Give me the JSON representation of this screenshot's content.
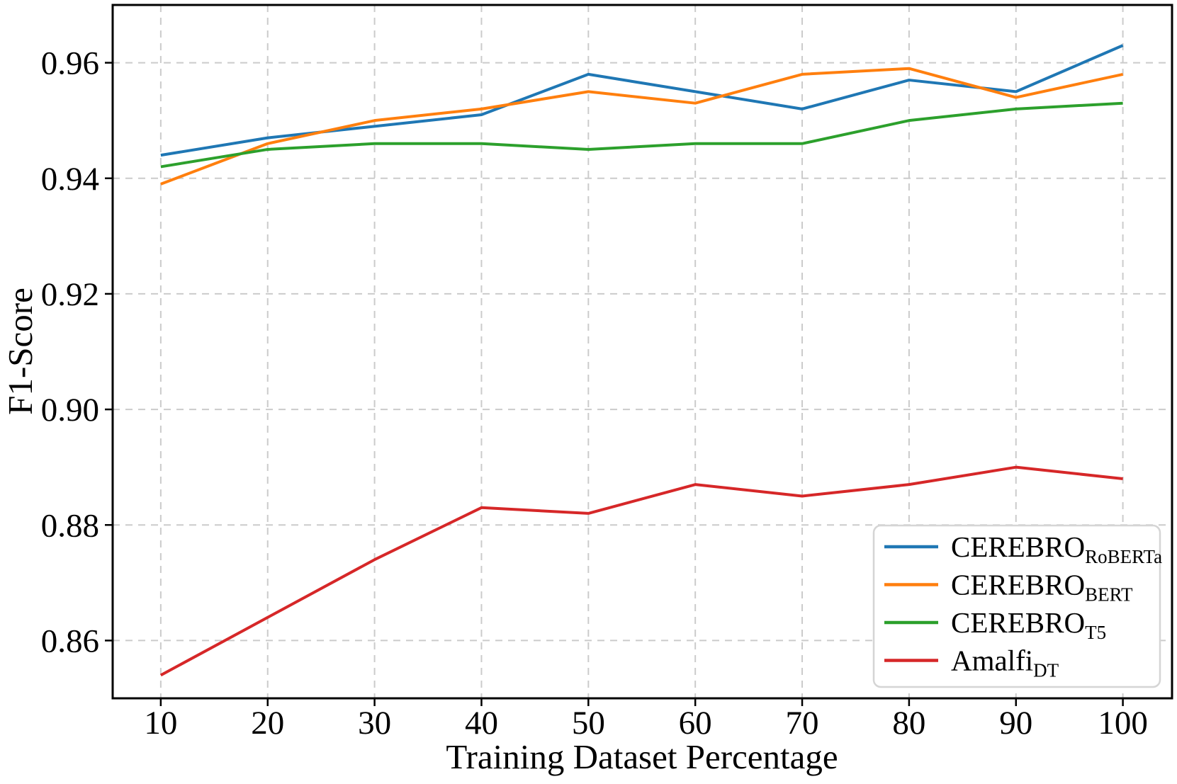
{
  "figure": {
    "background": "#ffffff"
  },
  "chart_data": {
    "type": "line",
    "title": "",
    "xlabel": "Training Dataset Percentage",
    "ylabel": "F1-Score",
    "x": [
      10,
      20,
      30,
      40,
      50,
      60,
      70,
      80,
      90,
      100
    ],
    "xtick_labels": [
      "10",
      "20",
      "30",
      "40",
      "50",
      "60",
      "70",
      "80",
      "90",
      "100"
    ],
    "yticks": [
      0.86,
      0.88,
      0.9,
      0.92,
      0.94,
      0.96
    ],
    "ytick_labels": [
      "0.86",
      "0.88",
      "0.90",
      "0.92",
      "0.94",
      "0.96"
    ],
    "xlim": [
      5.5,
      104.6
    ],
    "ylim": [
      0.85,
      0.97
    ],
    "grid": true,
    "grid_style": "dashed",
    "legend_position": "lower right",
    "series": [
      {
        "name": "CEREBRO_RoBERTa",
        "label_main": "CEREBRO",
        "label_sub": "RoBERTa",
        "color": "#1f77b4",
        "values": [
          0.944,
          0.947,
          0.949,
          0.951,
          0.958,
          0.955,
          0.952,
          0.957,
          0.955,
          0.963
        ]
      },
      {
        "name": "CEREBRO_BERT",
        "label_main": "CEREBRO",
        "label_sub": "BERT",
        "color": "#ff7f0e",
        "values": [
          0.939,
          0.946,
          0.95,
          0.952,
          0.955,
          0.953,
          0.958,
          0.959,
          0.954,
          0.958
        ]
      },
      {
        "name": "CEREBRO_T5",
        "label_main": "CEREBRO",
        "label_sub": "T5",
        "color": "#2ca02c",
        "values": [
          0.942,
          0.945,
          0.946,
          0.946,
          0.945,
          0.946,
          0.946,
          0.95,
          0.952,
          0.953
        ]
      },
      {
        "name": "Amalfi_DT",
        "label_main": "Amalfi",
        "label_sub": "DT",
        "color": "#d62728",
        "values": [
          0.854,
          0.864,
          0.874,
          0.883,
          0.882,
          0.887,
          0.885,
          0.887,
          0.89,
          0.888
        ]
      }
    ]
  },
  "style_colors": {
    "grid": "#cbcbcb",
    "spine": "#000000",
    "tick": "#000000",
    "legend_border": "#d5d5d5",
    "legend_bg": "#ffffff",
    "text": "#000000"
  }
}
